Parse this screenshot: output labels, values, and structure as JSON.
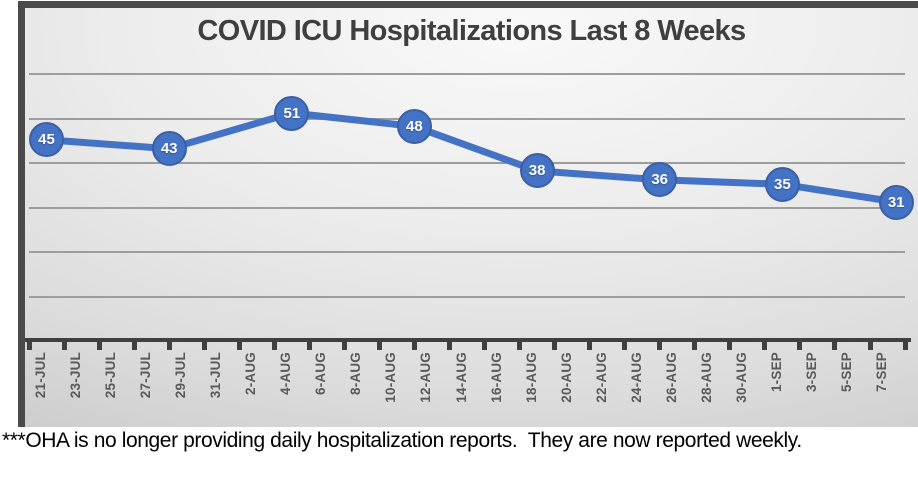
{
  "chart": {
    "frame_border_color": "#4a4a4a",
    "title_color": "#3f3f3f",
    "gridline_color": "#9d9d9d",
    "axis_color": "#3f3f3f",
    "tick_label_color": "#595959",
    "line_color": "#4472c4",
    "marker_fill": "#4472c4",
    "marker_ring": "#3a5fa5",
    "data_label_color": "#ffffff"
  },
  "chart_data": {
    "type": "line",
    "title": "COVID ICU Hospitalizations Last 8 Weeks",
    "x_tick_labels": [
      "21-JUL",
      "23-JUL",
      "25-JUL",
      "27-JUL",
      "29-JUL",
      "31-JUL",
      "2-AUG",
      "4-AUG",
      "6-AUG",
      "8-AUG",
      "10-AUG",
      "12-AUG",
      "14-AUG",
      "16-AUG",
      "18-AUG",
      "20-AUG",
      "22-AUG",
      "24-AUG",
      "26-AUG",
      "28-AUG",
      "30-AUG",
      "1-SEP",
      "3-SEP",
      "5-SEP",
      "7-SEP"
    ],
    "x": [
      "21-Jul",
      "28-Jul",
      "4-Aug",
      "11-Aug",
      "18-Aug",
      "25-Aug",
      "1-Sep",
      "7-Sep"
    ],
    "x_index": [
      0,
      3.5,
      7,
      10.5,
      14,
      17.5,
      21,
      24.25
    ],
    "values": [
      45,
      43,
      51,
      48,
      38,
      36,
      35,
      31
    ],
    "xlabel": "",
    "ylabel": "",
    "ylim": [
      0,
      60
    ],
    "grid_step": 10,
    "gridline_count": 6,
    "y_axis_labels_visible": false,
    "legend": "none",
    "data_labels_position": "inside markers"
  },
  "note": {
    "text": "***OHA is no longer providing daily hospitalization reports.  They are now reported weekly."
  }
}
